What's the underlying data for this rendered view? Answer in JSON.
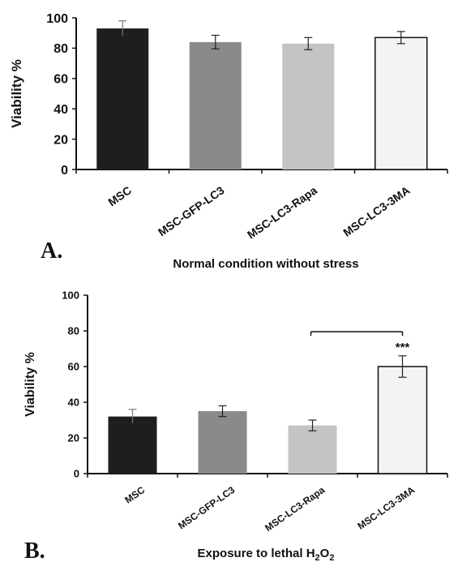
{
  "chart_data": [
    {
      "type": "bar",
      "panel_label": "A.",
      "title": "Normal condition without stress",
      "ylabel": "Viability %",
      "xlabel": "",
      "ylim": [
        0,
        100
      ],
      "yticks": [
        0,
        20,
        40,
        60,
        80,
        100
      ],
      "categories": [
        "MSC",
        "MSC-GFP-LC3",
        "MSC-LC3-Rapa",
        "MSC-LC3-3MA"
      ],
      "values": [
        93,
        84,
        83,
        87
      ],
      "errors": [
        5,
        4.5,
        4,
        4
      ],
      "colors": [
        "#1e1e1e",
        "#8a8a8a",
        "#c4c4c4",
        "#f3f3f3"
      ]
    },
    {
      "type": "bar",
      "panel_label": "B.",
      "title": "Exposure to lethal H2O2",
      "ylabel": "Viability %",
      "xlabel": "",
      "ylim": [
        0,
        100
      ],
      "yticks": [
        0,
        20,
        40,
        60,
        80,
        100
      ],
      "categories": [
        "MSC",
        "MSC-GFP-LC3",
        "MSC-LC3-Rapa",
        "MSC-LC3-3MA"
      ],
      "values": [
        32,
        35,
        27,
        60
      ],
      "errors": [
        4,
        3,
        3,
        6
      ],
      "colors": [
        "#1e1e1e",
        "#8a8a8a",
        "#c4c4c4",
        "#f3f3f3"
      ],
      "significance": {
        "from": 2,
        "to": 3,
        "label": "***"
      }
    }
  ]
}
